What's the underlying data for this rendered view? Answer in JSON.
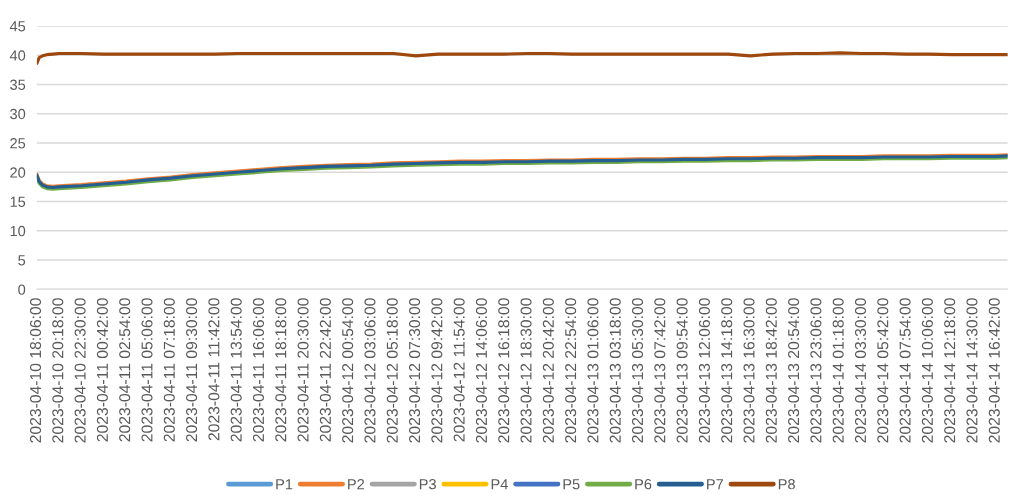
{
  "chart_data": {
    "type": "line",
    "x": [
      "2023-04-10T18:06",
      "2023-04-10T18:20",
      "2023-04-10T18:40",
      "2023-04-10T19:05",
      "2023-04-10T19:40",
      "2023-04-10T20:18",
      "2023-04-10T22:30",
      "2023-04-11T00:42",
      "2023-04-11T02:54",
      "2023-04-11T05:06",
      "2023-04-11T07:18",
      "2023-04-11T09:30",
      "2023-04-11T11:42",
      "2023-04-11T13:54",
      "2023-04-11T16:06",
      "2023-04-11T18:18",
      "2023-04-11T20:30",
      "2023-04-11T22:42",
      "2023-04-12T00:54",
      "2023-04-12T03:06",
      "2023-04-12T05:18",
      "2023-04-12T07:30",
      "2023-04-12T09:42",
      "2023-04-12T11:54",
      "2023-04-12T14:06",
      "2023-04-12T16:18",
      "2023-04-12T18:30",
      "2023-04-12T20:42",
      "2023-04-12T22:54",
      "2023-04-13T01:06",
      "2023-04-13T03:18",
      "2023-04-13T05:30",
      "2023-04-13T07:42",
      "2023-04-13T09:54",
      "2023-04-13T12:06",
      "2023-04-13T14:18",
      "2023-04-13T16:30",
      "2023-04-13T18:42",
      "2023-04-13T20:54",
      "2023-04-13T23:06",
      "2023-04-14T01:18",
      "2023-04-14T03:30",
      "2023-04-14T05:42",
      "2023-04-14T07:54",
      "2023-04-14T10:06",
      "2023-04-14T12:18",
      "2023-04-14T14:30",
      "2023-04-14T16:42",
      "2023-04-14T17:53"
    ],
    "xlim": [
      "2023-04-10T18:06",
      "2023-04-14T17:53"
    ],
    "xticks": [
      {
        "value": "2023-04-10T18:06",
        "label": "2023-04-10 18:06:00"
      },
      {
        "value": "2023-04-10T20:18",
        "label": "2023-04-10 20:18:00"
      },
      {
        "value": "2023-04-10T22:30",
        "label": "2023-04-10 22:30:00"
      },
      {
        "value": "2023-04-11T00:42",
        "label": "2023-04-11 00:42:00"
      },
      {
        "value": "2023-04-11T02:54",
        "label": "2023-04-11 02:54:00"
      },
      {
        "value": "2023-04-11T05:06",
        "label": "2023-04-11 05:06:00"
      },
      {
        "value": "2023-04-11T07:18",
        "label": "2023-04-11 07:18:00"
      },
      {
        "value": "2023-04-11T09:30",
        "label": "2023-04-11 09:30:00"
      },
      {
        "value": "2023-04-11T11:42",
        "label": "2023-04-11 11:42:00"
      },
      {
        "value": "2023-04-11T13:54",
        "label": "2023-04-11 13:54:00"
      },
      {
        "value": "2023-04-11T16:06",
        "label": "2023-04-11 16:06:00"
      },
      {
        "value": "2023-04-11T18:18",
        "label": "2023-04-11 18:18:00"
      },
      {
        "value": "2023-04-11T20:30",
        "label": "2023-04-11 20:30:00"
      },
      {
        "value": "2023-04-11T22:42",
        "label": "2023-04-11 22:42:00"
      },
      {
        "value": "2023-04-12T00:54",
        "label": "2023-04-12 00:54:00"
      },
      {
        "value": "2023-04-12T03:06",
        "label": "2023-04-12 03:06:00"
      },
      {
        "value": "2023-04-12T05:18",
        "label": "2023-04-12 05:18:00"
      },
      {
        "value": "2023-04-12T07:30",
        "label": "2023-04-12 07:30:00"
      },
      {
        "value": "2023-04-12T09:42",
        "label": "2023-04-12 09:42:00"
      },
      {
        "value": "2023-04-12T11:54",
        "label": "2023-04-12 11:54:00"
      },
      {
        "value": "2023-04-12T14:06",
        "label": "2023-04-12 14:06:00"
      },
      {
        "value": "2023-04-12T16:18",
        "label": "2023-04-12 16:18:00"
      },
      {
        "value": "2023-04-12T18:30",
        "label": "2023-04-12 18:30:00"
      },
      {
        "value": "2023-04-12T20:42",
        "label": "2023-04-12 20:42:00"
      },
      {
        "value": "2023-04-12T22:54",
        "label": "2023-04-12 22:54:00"
      },
      {
        "value": "2023-04-13T01:06",
        "label": "2023-04-13 01:06:00"
      },
      {
        "value": "2023-04-13T03:18",
        "label": "2023-04-13 03:18:00"
      },
      {
        "value": "2023-04-13T05:30",
        "label": "2023-04-13 05:30:00"
      },
      {
        "value": "2023-04-13T07:42",
        "label": "2023-04-13 07:42:00"
      },
      {
        "value": "2023-04-13T09:54",
        "label": "2023-04-13 09:54:00"
      },
      {
        "value": "2023-04-13T12:06",
        "label": "2023-04-13 12:06:00"
      },
      {
        "value": "2023-04-13T14:18",
        "label": "2023-04-13 14:18:00"
      },
      {
        "value": "2023-04-13T16:30",
        "label": "2023-04-13 16:30:00"
      },
      {
        "value": "2023-04-13T18:42",
        "label": "2023-04-13 18:42:00"
      },
      {
        "value": "2023-04-13T20:54",
        "label": "2023-04-13 20:54:00"
      },
      {
        "value": "2023-04-13T23:06",
        "label": "2023-04-13 23:06:00"
      },
      {
        "value": "2023-04-14T01:18",
        "label": "2023-04-14 01:18:00"
      },
      {
        "value": "2023-04-14T03:30",
        "label": "2023-04-14 03:30:00"
      },
      {
        "value": "2023-04-14T05:42",
        "label": "2023-04-14 05:42:00"
      },
      {
        "value": "2023-04-14T07:54",
        "label": "2023-04-14 07:54:00"
      },
      {
        "value": "2023-04-14T10:06",
        "label": "2023-04-14 10:06:00"
      },
      {
        "value": "2023-04-14T12:18",
        "label": "2023-04-14 12:18:00"
      },
      {
        "value": "2023-04-14T14:30",
        "label": "2023-04-14 14:30:00"
      },
      {
        "value": "2023-04-14T16:42",
        "label": "2023-04-14 16:42:00"
      }
    ],
    "ylim": [
      0,
      45
    ],
    "yticks": [
      0,
      5,
      10,
      15,
      20,
      25,
      30,
      35,
      40,
      45
    ],
    "grid": "y",
    "legend": "bottom",
    "series": [
      {
        "name": "P1",
        "color": "#5b9bd5",
        "values": [
          null,
          null,
          null,
          null,
          null,
          null,
          null,
          null,
          null,
          null,
          null,
          null,
          null,
          null,
          null,
          null,
          null,
          null,
          null,
          null,
          null,
          null,
          null,
          null,
          null,
          null,
          null,
          null,
          null,
          null,
          null,
          null,
          null,
          null,
          null,
          null,
          null,
          null,
          null,
          null,
          null,
          null,
          null,
          null,
          null,
          null,
          null,
          null,
          null
        ]
      },
      {
        "name": "P2",
        "color": "#ed7d31",
        "values": [
          19.7,
          18.6,
          18.0,
          17.7,
          17.6,
          17.7,
          17.9,
          18.2,
          18.5,
          18.9,
          19.2,
          19.6,
          19.9,
          20.2,
          20.5,
          20.8,
          21.0,
          21.2,
          21.3,
          21.4,
          21.6,
          21.7,
          21.8,
          21.9,
          21.9,
          22.0,
          22.0,
          22.1,
          22.1,
          22.2,
          22.2,
          22.3,
          22.3,
          22.4,
          22.4,
          22.5,
          22.5,
          22.6,
          22.6,
          22.7,
          22.7,
          22.7,
          22.8,
          22.8,
          22.8,
          22.9,
          22.9,
          22.9,
          23.0
        ]
      },
      {
        "name": "P3",
        "color": "#a5a5a5",
        "values": [
          null,
          null,
          null,
          null,
          null,
          null,
          null,
          null,
          null,
          null,
          null,
          null,
          null,
          null,
          null,
          null,
          null,
          null,
          null,
          null,
          null,
          null,
          null,
          null,
          null,
          null,
          null,
          null,
          null,
          null,
          null,
          null,
          null,
          null,
          null,
          null,
          null,
          null,
          null,
          null,
          null,
          null,
          null,
          null,
          null,
          null,
          null,
          null,
          null
        ]
      },
      {
        "name": "P4",
        "color": "#ffc000",
        "values": [
          null,
          null,
          null,
          null,
          null,
          null,
          null,
          null,
          null,
          null,
          null,
          null,
          null,
          null,
          null,
          null,
          null,
          null,
          null,
          null,
          null,
          null,
          null,
          null,
          null,
          null,
          null,
          null,
          null,
          null,
          null,
          null,
          null,
          null,
          null,
          null,
          null,
          null,
          null,
          null,
          null,
          null,
          null,
          null,
          null,
          null,
          null,
          null,
          null
        ]
      },
      {
        "name": "P5",
        "color": "#4472c4",
        "values": [
          null,
          null,
          null,
          null,
          null,
          null,
          null,
          null,
          null,
          null,
          null,
          null,
          null,
          null,
          null,
          null,
          null,
          null,
          null,
          null,
          null,
          null,
          null,
          null,
          null,
          null,
          null,
          null,
          null,
          null,
          null,
          null,
          null,
          null,
          null,
          null,
          null,
          null,
          null,
          null,
          null,
          null,
          null,
          null,
          null,
          null,
          null,
          null,
          null
        ]
      },
      {
        "name": "P6",
        "color": "#70ad47",
        "values": [
          19.2,
          18.1,
          17.5,
          17.2,
          17.1,
          17.2,
          17.4,
          17.7,
          18.0,
          18.4,
          18.7,
          19.1,
          19.4,
          19.7,
          20.0,
          20.3,
          20.5,
          20.7,
          20.8,
          20.9,
          21.1,
          21.2,
          21.3,
          21.4,
          21.4,
          21.5,
          21.5,
          21.6,
          21.6,
          21.7,
          21.7,
          21.8,
          21.8,
          21.9,
          21.9,
          22.0,
          22.0,
          22.1,
          22.1,
          22.2,
          22.2,
          22.2,
          22.3,
          22.3,
          22.3,
          22.4,
          22.4,
          22.4,
          22.5
        ]
      },
      {
        "name": "P7",
        "color": "#255e91",
        "values": [
          19.5,
          18.4,
          17.8,
          17.5,
          17.4,
          17.5,
          17.7,
          18.0,
          18.3,
          18.7,
          19.0,
          19.4,
          19.7,
          20.0,
          20.3,
          20.6,
          20.8,
          21.0,
          21.1,
          21.2,
          21.4,
          21.5,
          21.6,
          21.7,
          21.7,
          21.8,
          21.8,
          21.9,
          21.9,
          22.0,
          22.0,
          22.1,
          22.1,
          22.2,
          22.2,
          22.3,
          22.3,
          22.4,
          22.4,
          22.5,
          22.5,
          22.5,
          22.6,
          22.6,
          22.6,
          22.7,
          22.7,
          22.7,
          22.8
        ]
      },
      {
        "name": "P8",
        "color": "#9e480e",
        "values": [
          38.6,
          39.6,
          39.9,
          40.1,
          40.2,
          40.3,
          40.3,
          40.2,
          40.2,
          40.2,
          40.2,
          40.2,
          40.2,
          40.3,
          40.3,
          40.3,
          40.3,
          40.3,
          40.3,
          40.3,
          40.3,
          39.9,
          40.2,
          40.2,
          40.2,
          40.2,
          40.3,
          40.3,
          40.2,
          40.2,
          40.2,
          40.2,
          40.2,
          40.2,
          40.2,
          40.2,
          39.9,
          40.2,
          40.3,
          40.3,
          40.4,
          40.3,
          40.3,
          40.2,
          40.2,
          40.1,
          40.1,
          40.1,
          40.1
        ]
      }
    ]
  }
}
